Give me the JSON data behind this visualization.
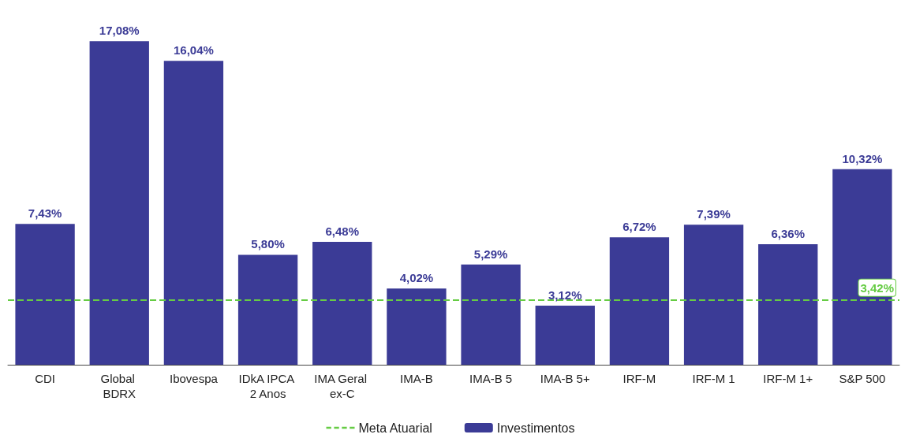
{
  "chart_data": {
    "type": "bar",
    "categories": [
      "CDI",
      "Global BDRX",
      "Ibovespa",
      "IDkA IPCA 2 Anos",
      "IMA Geral ex-C",
      "IMA-B",
      "IMA-B 5",
      "IMA-B 5+",
      "IRF-M",
      "IRF-M 1",
      "IRF-M 1+",
      "S&P 500"
    ],
    "series": [
      {
        "name": "Investimentos",
        "color": "#3b3b96",
        "values": [
          7.43,
          17.08,
          16.04,
          5.8,
          6.48,
          4.02,
          5.29,
          3.12,
          6.72,
          7.39,
          6.36,
          10.32
        ],
        "value_labels": [
          "7,43%",
          "17,08%",
          "16,04%",
          "5,80%",
          "6,48%",
          "4,02%",
          "5,29%",
          "3,12%",
          "6,72%",
          "7,39%",
          "6,36%",
          "10,32%"
        ]
      }
    ],
    "ref_lines": [
      {
        "axis": "y",
        "value": 3.42,
        "label": "3,42%",
        "color": "#66cc44",
        "line_style": "dashed"
      }
    ],
    "annotations": [
      "Meta Atuarial"
    ],
    "legend": "bottom",
    "grid": false
  }
}
